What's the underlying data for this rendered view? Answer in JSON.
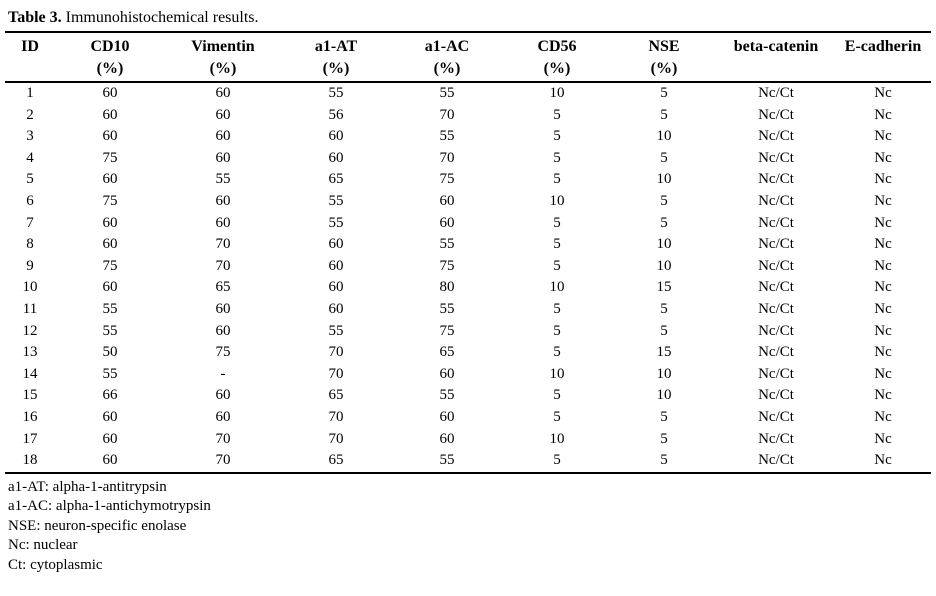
{
  "title": {
    "label": "Table 3.",
    "caption": "Immunohistochemical results."
  },
  "table": {
    "columns": [
      {
        "name": "ID",
        "unit": ""
      },
      {
        "name": "CD10",
        "unit": "(%)"
      },
      {
        "name": "Vimentin",
        "unit": "(%)"
      },
      {
        "name": "a1-AT",
        "unit": "(%)"
      },
      {
        "name": "a1-AC",
        "unit": "(%)"
      },
      {
        "name": "CD56",
        "unit": "(%)"
      },
      {
        "name": "NSE",
        "unit": "(%)"
      },
      {
        "name": "beta-catenin",
        "unit": ""
      },
      {
        "name": "E-cadherin",
        "unit": ""
      }
    ],
    "rows": [
      [
        "1",
        "60",
        "60",
        "55",
        "55",
        "10",
        "5",
        "Nc/Ct",
        "Nc"
      ],
      [
        "2",
        "60",
        "60",
        "56",
        "70",
        "5",
        "5",
        "Nc/Ct",
        "Nc"
      ],
      [
        "3",
        "60",
        "60",
        "60",
        "55",
        "5",
        "10",
        "Nc/Ct",
        "Nc"
      ],
      [
        "4",
        "75",
        "60",
        "60",
        "70",
        "5",
        "5",
        "Nc/Ct",
        "Nc"
      ],
      [
        "5",
        "60",
        "55",
        "65",
        "75",
        "5",
        "10",
        "Nc/Ct",
        "Nc"
      ],
      [
        "6",
        "75",
        "60",
        "55",
        "60",
        "10",
        "5",
        "Nc/Ct",
        "Nc"
      ],
      [
        "7",
        "60",
        "60",
        "55",
        "60",
        "5",
        "5",
        "Nc/Ct",
        "Nc"
      ],
      [
        "8",
        "60",
        "70",
        "60",
        "55",
        "5",
        "10",
        "Nc/Ct",
        "Nc"
      ],
      [
        "9",
        "75",
        "70",
        "60",
        "75",
        "5",
        "10",
        "Nc/Ct",
        "Nc"
      ],
      [
        "10",
        "60",
        "65",
        "60",
        "80",
        "10",
        "15",
        "Nc/Ct",
        "Nc"
      ],
      [
        "11",
        "55",
        "60",
        "60",
        "55",
        "5",
        "5",
        "Nc/Ct",
        "Nc"
      ],
      [
        "12",
        "55",
        "60",
        "55",
        "75",
        "5",
        "5",
        "Nc/Ct",
        "Nc"
      ],
      [
        "13",
        "50",
        "75",
        "70",
        "65",
        "5",
        "15",
        "Nc/Ct",
        "Nc"
      ],
      [
        "14",
        "55",
        "-",
        "70",
        "60",
        "10",
        "10",
        "Nc/Ct",
        "Nc"
      ],
      [
        "15",
        "66",
        "60",
        "65",
        "55",
        "5",
        "10",
        "Nc/Ct",
        "Nc"
      ],
      [
        "16",
        "60",
        "60",
        "70",
        "60",
        "5",
        "5",
        "Nc/Ct",
        "Nc"
      ],
      [
        "17",
        "60",
        "70",
        "70",
        "60",
        "10",
        "5",
        "Nc/Ct",
        "Nc"
      ],
      [
        "18",
        "60",
        "70",
        "65",
        "55",
        "5",
        "5",
        "Nc/Ct",
        "Nc"
      ]
    ]
  },
  "footnotes": [
    "a1-AT: alpha-1-antitrypsin",
    "a1-AC: alpha-1-antichymotrypsin",
    "NSE: neuron-specific enolase",
    "Nc: nuclear",
    "Ct: cytoplasmic"
  ],
  "colors": {
    "text": "#000000",
    "background": "#ffffff",
    "rule": "#000000"
  }
}
